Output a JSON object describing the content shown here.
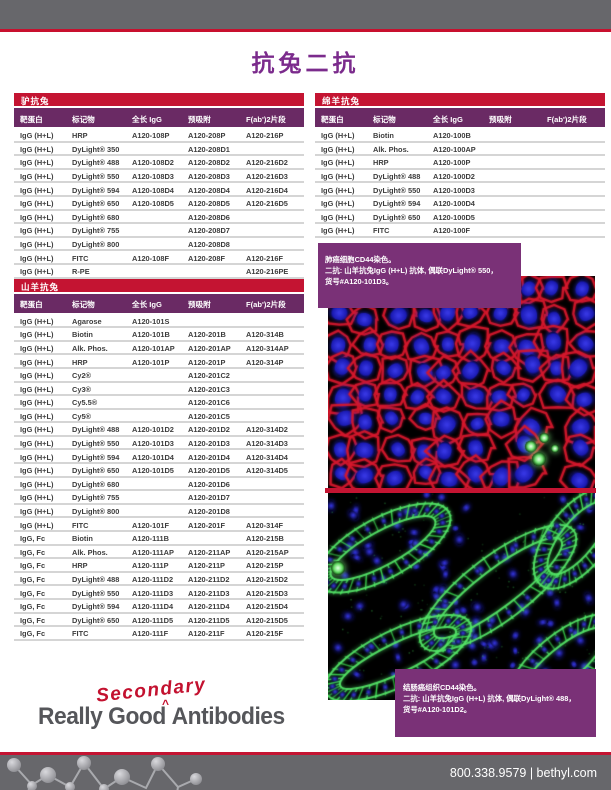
{
  "page_title": "抗兔二抗",
  "colors": {
    "crimson": "#c41432",
    "header_purple": "#6a2a64",
    "title_purple": "#7b2b8c",
    "caption_purple": "#7a3177",
    "bar_gray": "#67676b",
    "stain_red": "#d41930",
    "stain_green": "#3cc24a",
    "stain_blue": "#2a2ac8"
  },
  "tables": [
    {
      "title": "驴抗兔",
      "columns": [
        "靶蛋白",
        "标记物",
        "全长 IgG",
        "预吸附",
        "F(ab')2片段"
      ],
      "rows": [
        [
          "IgG (H+L)",
          "HRP",
          "A120-108P",
          "A120-208P",
          "A120-216P"
        ],
        [
          "IgG (H+L)",
          "DyLight® 350",
          "",
          "A120-208D1",
          ""
        ],
        [
          "IgG (H+L)",
          "DyLight® 488",
          "A120-108D2",
          "A120-208D2",
          "A120-216D2"
        ],
        [
          "IgG (H+L)",
          "DyLight® 550",
          "A120-108D3",
          "A120-208D3",
          "A120-216D3"
        ],
        [
          "IgG (H+L)",
          "DyLight® 594",
          "A120-108D4",
          "A120-208D4",
          "A120-216D4"
        ],
        [
          "IgG (H+L)",
          "DyLight® 650",
          "A120-108D5",
          "A120-208D5",
          "A120-216D5"
        ],
        [
          "IgG (H+L)",
          "DyLight® 680",
          "",
          "A120-208D6",
          ""
        ],
        [
          "IgG (H+L)",
          "DyLight® 755",
          "",
          "A120-208D7",
          ""
        ],
        [
          "IgG (H+L)",
          "DyLight® 800",
          "",
          "A120-208D8",
          ""
        ],
        [
          "IgG (H+L)",
          "FITC",
          "A120-108F",
          "A120-208F",
          "A120-216F"
        ],
        [
          "IgG (H+L)",
          "R-PE",
          "",
          "",
          "A120-216PE"
        ]
      ]
    },
    {
      "title": "山羊抗兔",
      "columns": [
        "靶蛋白",
        "标记物",
        "全长 IgG",
        "预吸附",
        "F(ab')2片段"
      ],
      "rows": [
        [
          "IgG (H+L)",
          "Agarose",
          "A120-101S",
          "",
          ""
        ],
        [
          "IgG (H+L)",
          "Biotin",
          "A120-101B",
          "A120-201B",
          "A120-314B"
        ],
        [
          "IgG (H+L)",
          "Alk. Phos.",
          "A120-101AP",
          "A120-201AP",
          "A120-314AP"
        ],
        [
          "IgG (H+L)",
          "HRP",
          "A120-101P",
          "A120-201P",
          "A120-314P"
        ],
        [
          "IgG (H+L)",
          "Cy2®",
          "",
          "A120-201C2",
          ""
        ],
        [
          "IgG (H+L)",
          "Cy3®",
          "",
          "A120-201C3",
          ""
        ],
        [
          "IgG (H+L)",
          "Cy5.5®",
          "",
          "A120-201C6",
          ""
        ],
        [
          "IgG (H+L)",
          "Cy5®",
          "",
          "A120-201C5",
          ""
        ],
        [
          "IgG (H+L)",
          "DyLight® 488",
          "A120-101D2",
          "A120-201D2",
          "A120-314D2"
        ],
        [
          "IgG (H+L)",
          "DyLight® 550",
          "A120-101D3",
          "A120-201D3",
          "A120-314D3"
        ],
        [
          "IgG (H+L)",
          "DyLight® 594",
          "A120-101D4",
          "A120-201D4",
          "A120-314D4"
        ],
        [
          "IgG (H+L)",
          "DyLight® 650",
          "A120-101D5",
          "A120-201D5",
          "A120-314D5"
        ],
        [
          "IgG (H+L)",
          "DyLight® 680",
          "",
          "A120-201D6",
          ""
        ],
        [
          "IgG (H+L)",
          "DyLight® 755",
          "",
          "A120-201D7",
          ""
        ],
        [
          "IgG (H+L)",
          "DyLight® 800",
          "",
          "A120-201D8",
          ""
        ],
        [
          "IgG (H+L)",
          "FITC",
          "A120-101F",
          "A120-201F",
          "A120-314F"
        ],
        [
          "IgG, Fc",
          "Biotin",
          "A120-111B",
          "",
          "A120-215B"
        ],
        [
          "IgG, Fc",
          "Alk. Phos.",
          "A120-111AP",
          "A120-211AP",
          "A120-215AP"
        ],
        [
          "IgG, Fc",
          "HRP",
          "A120-111P",
          "A120-211P",
          "A120-215P"
        ],
        [
          "IgG, Fc",
          "DyLight® 488",
          "A120-111D2",
          "A120-211D2",
          "A120-215D2"
        ],
        [
          "IgG, Fc",
          "DyLight® 550",
          "A120-111D3",
          "A120-211D3",
          "A120-215D3"
        ],
        [
          "IgG, Fc",
          "DyLight® 594",
          "A120-111D4",
          "A120-211D4",
          "A120-215D4"
        ],
        [
          "IgG, Fc",
          "DyLight® 650",
          "A120-111D5",
          "A120-211D5",
          "A120-215D5"
        ],
        [
          "IgG, Fc",
          "FITC",
          "A120-111F",
          "A120-211F",
          "A120-215F"
        ]
      ]
    },
    {
      "title": "绵羊抗兔",
      "columns": [
        "靶蛋白",
        "标记物",
        "全长 IgG",
        "预吸附",
        "F(ab')2片段"
      ],
      "rows": [
        [
          "IgG (H+L)",
          "Biotin",
          "A120-100B",
          "",
          ""
        ],
        [
          "IgG (H+L)",
          "Alk. Phos.",
          "A120-100AP",
          "",
          ""
        ],
        [
          "IgG (H+L)",
          "HRP",
          "A120-100P",
          "",
          ""
        ],
        [
          "IgG (H+L)",
          "DyLight® 488",
          "A120-100D2",
          "",
          ""
        ],
        [
          "IgG (H+L)",
          "DyLight® 550",
          "A120-100D3",
          "",
          ""
        ],
        [
          "IgG (H+L)",
          "DyLight® 594",
          "A120-100D4",
          "",
          ""
        ],
        [
          "IgG (H+L)",
          "DyLight® 650",
          "A120-100D5",
          "",
          ""
        ],
        [
          "IgG (H+L)",
          "FITC",
          "A120-100F",
          "",
          ""
        ]
      ]
    }
  ],
  "captions": [
    {
      "lines": [
        "肺癌细胞CD44染色。",
        "二抗: 山羊抗兔IgG (H+L) 抗体, 偶联DyLight® 550，",
        "货号#A120-101D3。"
      ]
    },
    {
      "lines": [
        "结肠癌组织CD44染色。",
        "二抗: 山羊抗兔IgG (H+L) 抗体, 偶联DyLight® 488，",
        "货号#A120-101D2。"
      ]
    }
  ],
  "micrographs": [
    {
      "icon": "fluorescence-micrograph-red-membrane-blue-nuclei"
    },
    {
      "icon": "fluorescence-micrograph-green-membrane-blue-nuclei"
    }
  ],
  "brand": {
    "secondary": "Secondary",
    "really_good": "Really Good",
    "caret": "^",
    "antibodies": "Antibodies"
  },
  "footer": {
    "contact": "800.338.9579 | bethyl.com"
  }
}
